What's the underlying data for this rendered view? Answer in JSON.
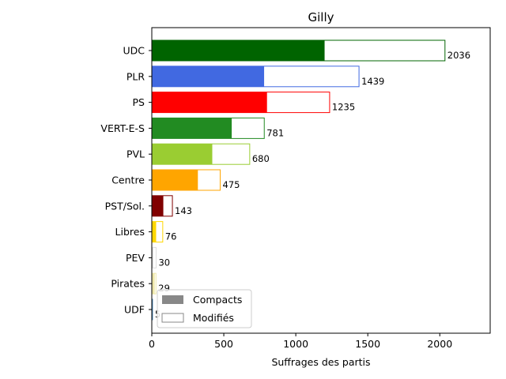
{
  "chart_data": {
    "type": "bar",
    "orientation": "horizontal",
    "title": "Gilly",
    "xlabel": "Suffrages des partis",
    "ylabel": "",
    "xlim": [
      0,
      2350
    ],
    "xticks": [
      0,
      500,
      1000,
      1500,
      2000
    ],
    "grid": false,
    "legend_position": "bottom-left",
    "categories": [
      "UDC",
      "PLR",
      "PS",
      "VERT-E-S",
      "PVL",
      "Centre",
      "PST/Sol.",
      "Libres",
      "PEV",
      "Pirates",
      "UDF"
    ],
    "colors": [
      "#006400",
      "#4169e1",
      "#ff0000",
      "#228b22",
      "#9acd32",
      "#ffa500",
      "#800000",
      "#ffd700",
      "#dddddd",
      "#eee8aa",
      "#4682b4"
    ],
    "series": [
      {
        "name": "Compacts",
        "values": [
          1200,
          780,
          800,
          555,
          420,
          320,
          80,
          30,
          10,
          20,
          3
        ]
      },
      {
        "name": "Modifiés",
        "values": [
          2036,
          1439,
          1235,
          781,
          680,
          475,
          143,
          76,
          30,
          29,
          5
        ]
      }
    ],
    "total_labels": [
      "2036",
      "1439",
      "1235",
      "781",
      "680",
      "475",
      "143",
      "76",
      "30",
      "29",
      "5"
    ],
    "legend": {
      "compact_color": "#888888",
      "modified_edge": "#888888"
    }
  }
}
